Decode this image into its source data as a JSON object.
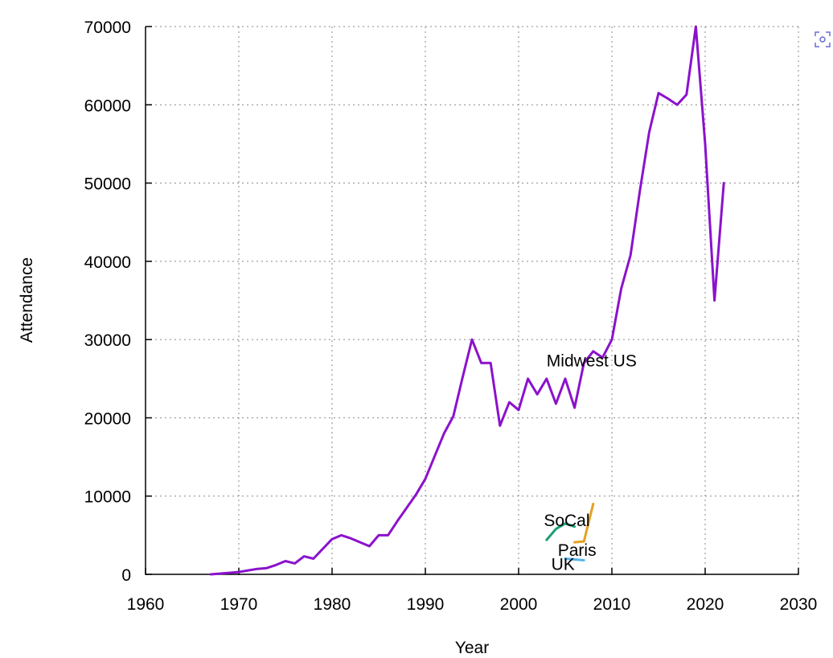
{
  "chart_data": {
    "type": "line",
    "title": "",
    "xlabel": "Year",
    "ylabel": "Attendance",
    "xlim": [
      1960,
      2030
    ],
    "ylim": [
      0,
      70000
    ],
    "xticks": [
      1960,
      1970,
      1980,
      1990,
      2000,
      2010,
      2020,
      2030
    ],
    "yticks": [
      0,
      10000,
      20000,
      30000,
      40000,
      50000,
      60000,
      70000
    ],
    "grid": true,
    "series": [
      {
        "name": "Midwest US",
        "color": "#8b12cc",
        "x": [
          1967,
          1970,
          1971,
          1972,
          1973,
          1974,
          1975,
          1976,
          1977,
          1978,
          1980,
          1981,
          1982,
          1983,
          1984,
          1985,
          1986,
          1987,
          1988,
          1989,
          1990,
          1991,
          1992,
          1993,
          1994,
          1995,
          1996,
          1997,
          1998,
          1999,
          2000,
          2001,
          2002,
          2003,
          2004,
          2005,
          2006,
          2007,
          2008,
          2009,
          2010,
          2011,
          2012,
          2013,
          2014,
          2015,
          2016,
          2017,
          2018,
          2019,
          2020,
          2021,
          2022
        ],
        "y": [
          0,
          300,
          500,
          700,
          800,
          1200,
          1700,
          1400,
          2300,
          2000,
          4500,
          5000,
          4600,
          4100,
          3600,
          5000,
          5000,
          6800,
          8500,
          10200,
          12200,
          15100,
          18000,
          20200,
          25200,
          30000,
          27000,
          27000,
          19000,
          22000,
          21000,
          25000,
          23000,
          25000,
          21800,
          25000,
          21300,
          27000,
          28500,
          27700,
          30000,
          36500,
          40800,
          49000,
          56500,
          61500,
          60800,
          60000,
          61300,
          70000,
          55000,
          35000,
          50000
        ]
      },
      {
        "name": "SoCal",
        "color": "#1a9e77",
        "x": [
          2003,
          2004,
          2005,
          2006
        ],
        "y": [
          4400,
          5800,
          6500,
          6100
        ]
      },
      {
        "name": "Paris",
        "color": "#e6a020",
        "x": [
          2006,
          2007,
          2008
        ],
        "y": [
          4100,
          4200,
          9000
        ]
      },
      {
        "name": "UK",
        "color": "#56b4e9",
        "x": [
          2005,
          2006,
          2007
        ],
        "y": [
          2000,
          1900,
          1800
        ]
      }
    ],
    "annotations": [
      {
        "text": "Midwest US",
        "x": 2003,
        "y": 27300
      },
      {
        "text": "SoCal",
        "x": 2002.7,
        "y": 6900
      },
      {
        "text": "Paris",
        "x": 2004.2,
        "y": 3100
      },
      {
        "text": "UK",
        "x": 2003.5,
        "y": 1300
      }
    ]
  },
  "icons": {
    "focus_icon": "focus-target-icon"
  }
}
